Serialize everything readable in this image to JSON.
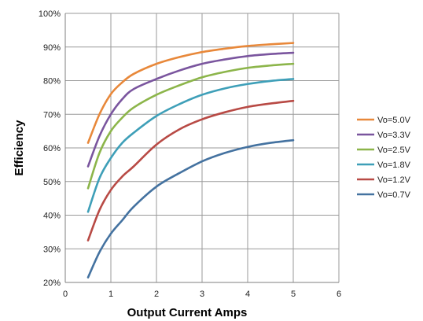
{
  "chart_data": {
    "type": "line",
    "title": "",
    "xlabel": "Output Current Amps",
    "ylabel": "Efficiency",
    "xlim": [
      0,
      6
    ],
    "ylim": [
      20,
      100
    ],
    "x_ticks": [
      0,
      1,
      2,
      3,
      4,
      5,
      6
    ],
    "y_ticks": [
      20,
      30,
      40,
      50,
      60,
      70,
      80,
      90,
      100
    ],
    "y_tick_suffix": "%",
    "grid": true,
    "legend_position": "right",
    "x": [
      0.5,
      0.75,
      1.0,
      1.25,
      1.5,
      2.0,
      2.5,
      3.0,
      3.5,
      4.0,
      4.5,
      5.0
    ],
    "series": [
      {
        "name": "Vo=5.0V",
        "color": "#E8883A",
        "values": [
          61.5,
          70.0,
          76.0,
          79.5,
          82.0,
          85.0,
          87.0,
          88.5,
          89.5,
          90.3,
          90.8,
          91.2
        ]
      },
      {
        "name": "Vo=3.3V",
        "color": "#7A559E",
        "values": [
          54.5,
          63.5,
          70.0,
          74.5,
          77.5,
          80.5,
          83.0,
          85.0,
          86.3,
          87.3,
          87.9,
          88.3
        ]
      },
      {
        "name": "Vo=2.5V",
        "color": "#8CB54A",
        "values": [
          48.0,
          58.5,
          65.0,
          69.0,
          72.0,
          75.8,
          78.6,
          81.0,
          82.6,
          83.8,
          84.5,
          85.0
        ]
      },
      {
        "name": "Vo=1.8V",
        "color": "#3E9FB8",
        "values": [
          41.0,
          51.0,
          57.0,
          61.5,
          64.5,
          69.5,
          73.0,
          75.8,
          77.7,
          79.0,
          79.9,
          80.5
        ]
      },
      {
        "name": "Vo=1.2V",
        "color": "#B84A45",
        "values": [
          32.5,
          41.5,
          47.5,
          51.5,
          54.5,
          61.0,
          65.5,
          68.5,
          70.6,
          72.2,
          73.2,
          74.0
        ]
      },
      {
        "name": "Vo=0.7V",
        "color": "#4472A0",
        "values": [
          21.5,
          29.0,
          34.5,
          38.5,
          42.5,
          48.5,
          52.5,
          56.0,
          58.5,
          60.3,
          61.5,
          62.3
        ]
      }
    ]
  }
}
